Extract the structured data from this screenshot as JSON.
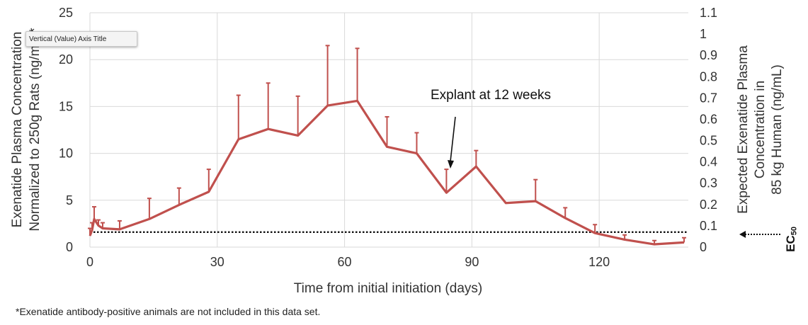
{
  "chart_data": {
    "type": "line",
    "xlabel": "Time from initial initiation (days)",
    "ylabel_left": "Exenatide Plasma Concentration Normalized to 250g Rats (ng/mL)*",
    "ylabel_right": "Expected Exenatide Plasma Concentration in 85 kg Human (ng/mL)",
    "xlim": [
      0,
      141
    ],
    "ylim_left": [
      0,
      25
    ],
    "ylim_right": [
      0,
      1.1
    ],
    "xticks": [
      "0",
      "30",
      "60",
      "90",
      "120"
    ],
    "yticks_left": [
      "0",
      "5",
      "10",
      "15",
      "20",
      "25"
    ],
    "yticks_right": [
      "0",
      "0.1",
      "0.2",
      "0.3",
      "0.4",
      "0.5",
      "0.6",
      "0.7",
      "0.8",
      "0.9",
      "1",
      "1.1"
    ],
    "line_color": "#c0504d",
    "series": [
      {
        "x": [
          0,
          0.5,
          1,
          2,
          3,
          7,
          14,
          21,
          28,
          35,
          42,
          49,
          56,
          63,
          70,
          77,
          84,
          91,
          98,
          105,
          112,
          119,
          126,
          133,
          140
        ],
        "y": [
          1.2,
          1.8,
          3.0,
          2.3,
          2.0,
          1.9,
          3.0,
          4.5,
          5.9,
          11.5,
          12.6,
          11.9,
          15.1,
          15.6,
          10.7,
          10.0,
          5.8,
          8.6,
          4.7,
          4.9,
          3.1,
          1.5,
          0.8,
          0.3,
          0.5
        ],
        "error": [
          0.8,
          0.8,
          1.3,
          0.6,
          0.6,
          0.9,
          2.2,
          1.8,
          2.4,
          4.7,
          4.9,
          4.2,
          6.4,
          5.6,
          3.2,
          2.2,
          2.5,
          1.7,
          0.0,
          2.3,
          1.1,
          0.9,
          0.5,
          0.4,
          0.5
        ]
      }
    ],
    "threshold": {
      "y": 1.6,
      "style": "dotted",
      "label": "EC50"
    },
    "annotation": {
      "text": "Explant at 12 weeks",
      "arrow_to_x": 84,
      "arrow_to_y": 8.0
    }
  },
  "tooltip": "Vertical (Value) Axis Title",
  "footnote": "*Exenatide antibody-positive animals are not included in this data set.",
  "ec50_label": "EC50"
}
